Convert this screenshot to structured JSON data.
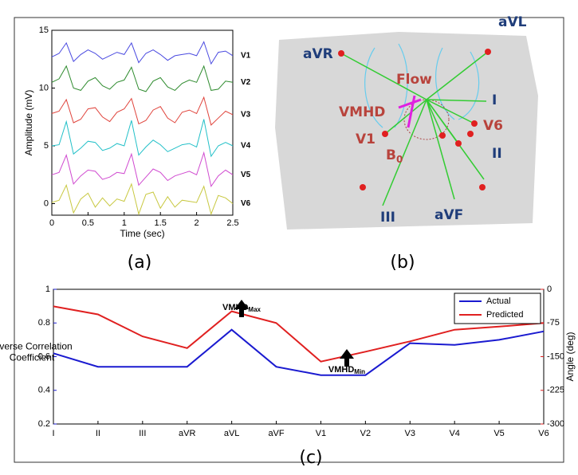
{
  "chart_data": [
    {
      "type": "line",
      "caption": "(a)",
      "xlabel": "Time (sec)",
      "ylabel": "Amplitude (mV)",
      "x": [
        0,
        0.1,
        0.2,
        0.3,
        0.4,
        0.5,
        0.6,
        0.7,
        0.8,
        0.9,
        1,
        1.1,
        1.2,
        1.3,
        1.4,
        1.5,
        1.6,
        1.7,
        1.8,
        1.9,
        2,
        2.1,
        2.2,
        2.3,
        2.4,
        2.5
      ],
      "xlim": [
        0,
        2.5
      ],
      "xticks": [
        0,
        0.5,
        1,
        1.5,
        2,
        2.5
      ],
      "ylim": [
        -1,
        15
      ],
      "yticks": [
        0,
        5,
        10,
        15
      ],
      "series": [
        {
          "name": "V1",
          "color": "#4a4ae0",
          "values": [
            12.7,
            13.0,
            13.9,
            12.3,
            12.9,
            13.3,
            13.0,
            12.5,
            12.8,
            13.1,
            12.9,
            13.9,
            12.2,
            13.0,
            13.3,
            12.9,
            12.4,
            12.8,
            12.9,
            13.0,
            12.8,
            14.0,
            12.1,
            13.1,
            13.2,
            12.8
          ]
        },
        {
          "name": "V2",
          "color": "#2e8b2e",
          "values": [
            10.5,
            10.8,
            11.9,
            10.0,
            9.8,
            10.6,
            10.9,
            10.2,
            9.9,
            10.5,
            10.7,
            11.8,
            9.9,
            9.7,
            10.6,
            10.9,
            10.1,
            9.8,
            10.4,
            10.7,
            10.5,
            11.9,
            9.8,
            9.9,
            10.6,
            10.5
          ]
        },
        {
          "name": "V3",
          "color": "#e0443c",
          "values": [
            7.8,
            8.0,
            9.0,
            7.0,
            7.3,
            8.2,
            8.3,
            7.5,
            7.1,
            7.9,
            8.2,
            9.1,
            6.9,
            7.2,
            8.1,
            8.4,
            7.4,
            7.0,
            7.9,
            8.1,
            7.8,
            9.2,
            6.8,
            7.4,
            8.0,
            7.7
          ]
        },
        {
          "name": "V4",
          "color": "#22c0c8",
          "values": [
            5.0,
            5.1,
            7.1,
            4.3,
            4.8,
            5.4,
            5.3,
            4.6,
            4.8,
            5.2,
            5.0,
            7.2,
            4.2,
            4.9,
            5.5,
            5.1,
            4.5,
            4.8,
            5.1,
            5.2,
            4.9,
            7.3,
            4.1,
            5.0,
            5.3,
            5.0
          ]
        },
        {
          "name": "V5",
          "color": "#d04ad0",
          "values": [
            2.5,
            2.7,
            4.2,
            1.7,
            2.4,
            2.9,
            2.8,
            2.1,
            2.3,
            2.7,
            2.6,
            4.3,
            1.6,
            2.3,
            3.0,
            2.7,
            2.0,
            2.4,
            2.6,
            2.8,
            2.5,
            4.4,
            1.5,
            2.4,
            2.9,
            2.5
          ]
        },
        {
          "name": "V6",
          "color": "#c8c840",
          "values": [
            0.1,
            0.3,
            1.6,
            -0.8,
            0.4,
            0.9,
            -0.3,
            0.5,
            -0.2,
            0.4,
            0.2,
            1.7,
            -0.9,
            0.8,
            1.0,
            -0.4,
            0.6,
            -0.3,
            0.3,
            0.2,
            0.1,
            1.5,
            -0.9,
            0.7,
            0.5,
            0.0
          ]
        }
      ]
    },
    {
      "type": "line",
      "caption": "(c)",
      "ylabel": [
        "Inverse Correlation",
        "Coefficient"
      ],
      "y2label": "Angle (deg)",
      "categories": [
        "I",
        "II",
        "III",
        "aVR",
        "aVL",
        "aVF",
        "V1",
        "V2",
        "V3",
        "V4",
        "V5",
        "V6"
      ],
      "ylim": [
        0.2,
        1
      ],
      "yticks": [
        0.2,
        0.4,
        0.6,
        0.8,
        1
      ],
      "y2lim": [
        -300,
        0
      ],
      "y2ticks": [
        0,
        -75,
        -150,
        -225,
        -300
      ],
      "legend": "top-right",
      "series": [
        {
          "name": "Actual",
          "color": "#1a1ad0",
          "values": [
            0.62,
            0.54,
            0.54,
            0.54,
            0.76,
            0.54,
            0.49,
            0.49,
            0.68,
            0.67,
            0.7,
            0.75
          ]
        },
        {
          "name": "Predicted",
          "color": "#e02020",
          "axis": "y2",
          "values": [
            -38,
            -56,
            -105,
            -131,
            -49,
            -75,
            -161,
            -139,
            -116,
            -90,
            -83,
            -75
          ]
        }
      ],
      "annotations": [
        {
          "text": "VMHD",
          "subscript": "Max"
        },
        {
          "text": "VMHD",
          "subscript": "Min"
        }
      ]
    }
  ],
  "diagram": {
    "caption": "(b)",
    "labels": [
      "aVR",
      "aVL",
      "Flow",
      "I",
      "VMHD",
      "V6",
      "V1",
      "III",
      "aVF",
      "II"
    ],
    "field": {
      "text": "B",
      "subscript": "0"
    }
  }
}
